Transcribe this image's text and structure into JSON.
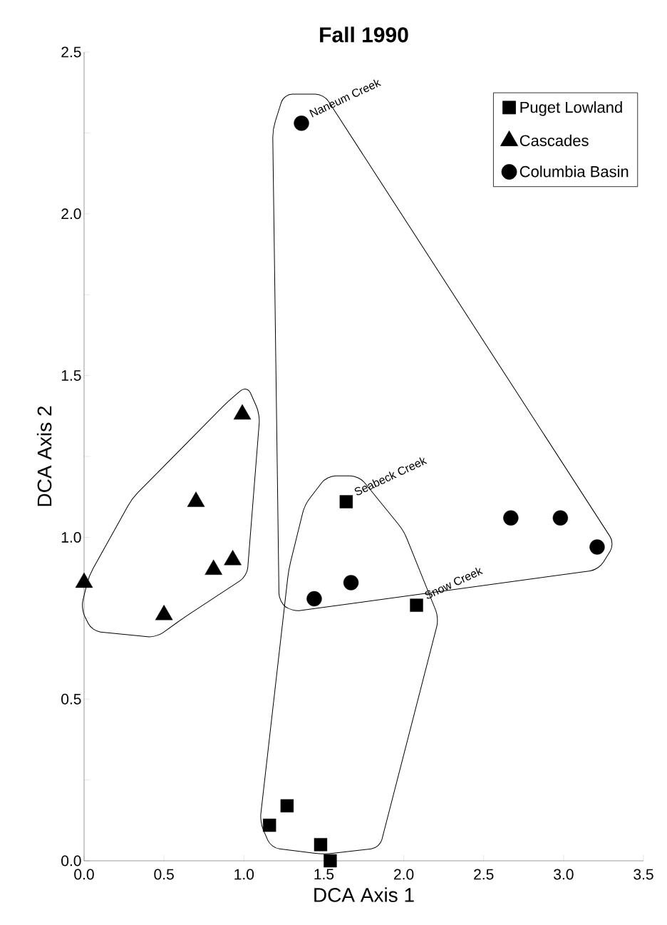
{
  "chart_data": {
    "type": "scatter",
    "title": "Fall 1990",
    "xlabel": "DCA Axis 1",
    "ylabel": "DCA Axis 2",
    "xlim": [
      0,
      3.5
    ],
    "ylim": [
      0,
      2.5
    ],
    "xticks": [
      {
        "value": 0,
        "label": "0.0"
      },
      {
        "value": 0.5,
        "label": "0.5"
      },
      {
        "value": 1,
        "label": "1.0"
      },
      {
        "value": 1.5,
        "label": "1.5"
      },
      {
        "value": 2,
        "label": "2.0"
      },
      {
        "value": 2.5,
        "label": "2.5"
      },
      {
        "value": 3,
        "label": "3.0"
      },
      {
        "value": 3.5,
        "label": "3.5"
      }
    ],
    "yticks": [
      {
        "value": 0,
        "label": "0.0"
      },
      {
        "value": 0.25,
        "label": null
      },
      {
        "value": 0.5,
        "label": "0.5"
      },
      {
        "value": 0.75,
        "label": null
      },
      {
        "value": 1,
        "label": "1.0"
      },
      {
        "value": 1.25,
        "label": null
      },
      {
        "value": 1.5,
        "label": "1.5"
      },
      {
        "value": 1.75,
        "label": null
      },
      {
        "value": 2,
        "label": "2.0"
      },
      {
        "value": 2.25,
        "label": null
      },
      {
        "value": 2.5,
        "label": "2.5"
      }
    ],
    "grid": false,
    "legend": "top right",
    "series": [
      {
        "name": "Puget Lowland",
        "color": "#000000",
        "marker": "square",
        "x": [
          1.64,
          2.08,
          1.27,
          1.16,
          1.48,
          1.54
        ],
        "values": [
          1.11,
          0.79,
          0.17,
          0.11,
          0.05,
          0.0
        ]
      },
      {
        "name": "Cascades",
        "color": "#000000",
        "marker": "triangle",
        "x": [
          0.0,
          0.5,
          0.7,
          0.81,
          0.93,
          0.99
        ],
        "values": [
          0.86,
          0.76,
          1.11,
          0.9,
          0.93,
          1.38
        ]
      },
      {
        "name": "Columbia Basin",
        "color": "#000000",
        "marker": "circle",
        "x": [
          1.36,
          1.44,
          1.67,
          2.67,
          2.98,
          3.21
        ],
        "values": [
          2.28,
          0.81,
          0.86,
          1.06,
          1.06,
          0.97
        ]
      }
    ],
    "annotations": [
      {
        "text": "Naneum Creek",
        "x": 1.36,
        "y": 2.28
      },
      {
        "text": "Seabeck Creek",
        "x": 1.64,
        "y": 1.11
      },
      {
        "text": "Snow Creek",
        "x": 2.08,
        "y": 0.79
      }
    ]
  }
}
